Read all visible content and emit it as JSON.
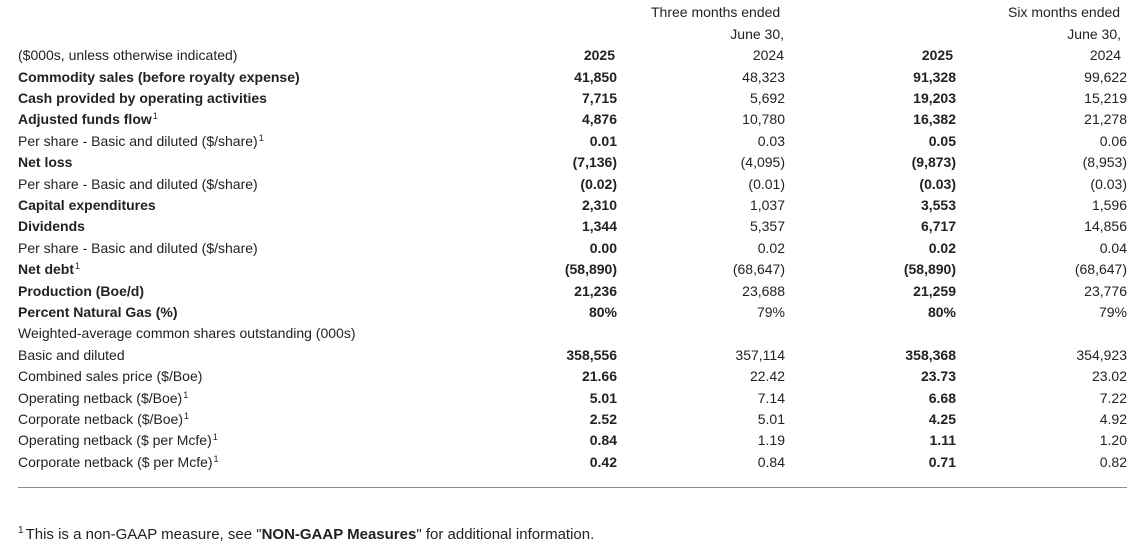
{
  "header": {
    "three_months_line1": "Three months ended",
    "three_months_line2": "June 30,",
    "six_months_line1": "Six months ended",
    "six_months_line2": "June 30,",
    "units_label": "($000s, unless otherwise indicated)",
    "col1_year": "2025",
    "col2_year": "2024",
    "col3_year": "2025",
    "col4_year": "2024"
  },
  "rows": [
    {
      "label": "Commodity sales (before royalty expense)",
      "bold": true,
      "fn": "",
      "v1": "41,850",
      "v2": "48,323",
      "v3": "91,328",
      "v4": "99,622"
    },
    {
      "label": "Cash provided by operating activities",
      "bold": true,
      "fn": "",
      "v1": "7,715",
      "v2": "5,692",
      "v3": "19,203",
      "v4": "15,219"
    },
    {
      "label": "Adjusted funds flow",
      "bold": true,
      "fn": "1",
      "v1": "4,876",
      "v2": "10,780",
      "v3": "16,382",
      "v4": "21,278"
    },
    {
      "label": "Per share - Basic and diluted ($/share)",
      "bold": false,
      "fn": "1",
      "v1": "0.01",
      "v2": "0.03",
      "v3": "0.05",
      "v4": "0.06"
    },
    {
      "label": "Net loss",
      "bold": true,
      "fn": "",
      "v1": "(7,136)",
      "v2": "(4,095)",
      "v3": "(9,873)",
      "v4": "(8,953)"
    },
    {
      "label": "Per share - Basic and diluted ($/share)",
      "bold": false,
      "fn": "",
      "v1": "(0.02)",
      "v2": "(0.01)",
      "v3": "(0.03)",
      "v4": "(0.03)"
    },
    {
      "label": "Capital expenditures",
      "bold": true,
      "fn": "",
      "v1": "2,310",
      "v2": "1,037",
      "v3": "3,553",
      "v4": "1,596"
    },
    {
      "label": "Dividends",
      "bold": true,
      "fn": "",
      "v1": "1,344",
      "v2": "5,357",
      "v3": "6,717",
      "v4": "14,856"
    },
    {
      "label": "Per share - Basic and diluted ($/share)",
      "bold": false,
      "fn": "",
      "v1": "0.00",
      "v2": "0.02",
      "v3": "0.02",
      "v4": "0.04"
    },
    {
      "label": "Net debt",
      "bold": true,
      "fn": "1",
      "v1": "(58,890)",
      "v2": "(68,647)",
      "v3": "(58,890)",
      "v4": "(68,647)"
    },
    {
      "label": "Production (Boe/d)",
      "bold": true,
      "fn": "",
      "v1": "21,236",
      "v2": "23,688",
      "v3": "21,259",
      "v4": "23,776"
    },
    {
      "label": "Percent Natural Gas (%)",
      "bold": true,
      "fn": "",
      "v1": "80%",
      "v2": "79%",
      "v3": "80%",
      "v4": "79%"
    },
    {
      "label": "Weighted-average common shares outstanding (000s)",
      "bold": false,
      "fn": "",
      "v1": "",
      "v2": "",
      "v3": "",
      "v4": ""
    },
    {
      "label": "Basic and diluted",
      "bold": false,
      "fn": "",
      "v1": "358,556",
      "v2": "357,114",
      "v3": "358,368",
      "v4": "354,923"
    },
    {
      "label": "Combined sales price ($/Boe)",
      "bold": false,
      "fn": "",
      "v1": "21.66",
      "v2": "22.42",
      "v3": "23.73",
      "v4": "23.02"
    },
    {
      "label": "Operating netback ($/Boe)",
      "bold": false,
      "fn": "1",
      "v1": "5.01",
      "v2": "7.14",
      "v3": "6.68",
      "v4": "7.22"
    },
    {
      "label": "Corporate netback ($/Boe)",
      "bold": false,
      "fn": "1",
      "v1": "2.52",
      "v2": "5.01",
      "v3": "4.25",
      "v4": "4.92"
    },
    {
      "label": "Operating netback ($ per Mcfe)",
      "bold": false,
      "fn": "1",
      "v1": "0.84",
      "v2": "1.19",
      "v3": "1.11",
      "v4": "1.20"
    },
    {
      "label": "Corporate netback ($ per Mcfe)",
      "bold": false,
      "fn": "1",
      "v1": "0.42",
      "v2": "0.84",
      "v3": "0.71",
      "v4": "0.82"
    }
  ],
  "footnote": {
    "marker": "1",
    "text_before": "This is a non-GAAP measure, see \"",
    "text_bold": "NON-GAAP Measures",
    "text_after": "\" for additional information."
  }
}
